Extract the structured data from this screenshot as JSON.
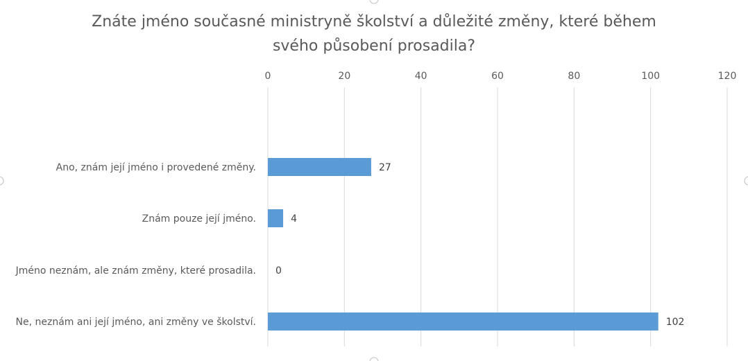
{
  "chart_data": {
    "type": "bar",
    "orientation": "horizontal",
    "title": "Znáte jméno současné ministryně školství a důležité změny, které během svého působení prosadila?",
    "title_lines": [
      "Znáte jméno současné ministryně školství a důležité změny, které během",
      "svého působení prosadila?"
    ],
    "categories": [
      "Ano, znám její jméno i provedené změny.",
      "Znám pouze její jméno.",
      "Jméno neznám, ale znám změny, které prosadila.",
      "Ne, neznám ani její jméno, ani změny ve školství."
    ],
    "values": [
      27,
      4,
      0,
      102
    ],
    "value_labels": [
      "27",
      "4",
      "0",
      "102"
    ],
    "xlim": [
      0,
      120
    ],
    "ticks": [
      "0",
      "20",
      "40",
      "60",
      "80",
      "100",
      "120"
    ],
    "tick_values": [
      0,
      20,
      40,
      60,
      80,
      100,
      120
    ],
    "axis_position": "top",
    "grid": true,
    "legend": "none",
    "bar_color": "#5b9bd5",
    "grid_color": "#d9d9d9",
    "text_color": "#595959"
  }
}
